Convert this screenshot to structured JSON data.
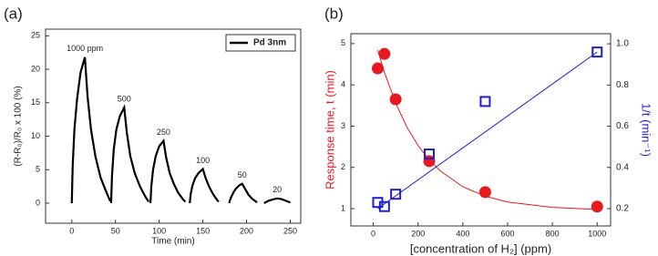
{
  "chart_data": [
    {
      "type": "line",
      "panel_label": "(a)",
      "xlabel": "Time (min)",
      "ylabel": "(R-R₀)/R₀ x 100 (%)",
      "x": [
        0,
        1,
        3,
        6,
        10,
        15,
        18,
        22,
        27,
        33,
        40,
        44,
        44.5,
        45,
        46,
        48,
        51,
        55,
        60,
        63,
        67,
        72,
        78,
        84,
        88,
        89,
        90,
        91,
        93,
        96,
        100,
        105,
        108,
        112,
        117,
        122,
        127,
        130,
        132,
        135,
        136,
        138,
        141,
        145,
        150,
        153,
        157,
        161,
        165,
        168,
        174,
        180,
        182,
        185,
        188,
        192,
        195,
        198,
        202,
        206,
        210,
        212,
        216,
        220,
        225,
        230,
        235,
        240,
        245,
        250
      ],
      "series": [
        {
          "name": "Pd 3nm",
          "color": "#000000",
          "values": [
            0,
            5.5,
            11,
            15.5,
            19.5,
            21.8,
            16,
            11,
            7,
            3.8,
            1.5,
            0.3,
            null,
            0,
            4,
            8,
            11,
            13,
            14.3,
            10.5,
            7,
            4.5,
            2.5,
            1,
            0.2,
            null,
            0,
            2.5,
            5,
            7,
            8.5,
            9.3,
            6.8,
            4.5,
            2.8,
            1.5,
            0.6,
            0.2,
            null,
            0,
            1.3,
            2.6,
            3.7,
            4.5,
            5.1,
            3.8,
            2.5,
            1.5,
            0.7,
            0.2,
            null,
            0,
            0.8,
            1.6,
            2.2,
            2.7,
            2.9,
            2.2,
            1.3,
            0.7,
            0.3,
            0.1,
            null,
            0,
            0.35,
            0.55,
            0.7,
            0.6,
            0.35,
            0.1
          ]
        }
      ],
      "annotations": [
        "1000 ppm",
        "500",
        "250",
        "100",
        "50",
        "20"
      ],
      "legend": "upper right",
      "xlim": [
        -30,
        262
      ],
      "xticks": [
        0,
        50,
        100,
        150,
        200,
        250
      ],
      "ylim": [
        -3,
        26
      ],
      "yticks": [
        0,
        5,
        10,
        15,
        20,
        25
      ]
    },
    {
      "type": "scatter",
      "panel_label": "(b)",
      "xlabel": "[concentration of H₂] (ppm)",
      "ylabel": "Response time, t (min)",
      "y2label": "1/t (min⁻¹)",
      "series": [
        {
          "marker": "circle",
          "color": "#e8191e",
          "x": [
            20,
            50,
            100,
            250,
            500,
            1000
          ],
          "values": [
            4.4,
            4.75,
            3.65,
            2.15,
            1.4,
            1.05
          ]
        },
        {
          "marker": "none",
          "color": "#e8191e",
          "x": [
            20,
            50,
            100,
            150,
            200,
            250,
            300,
            400,
            500,
            600,
            800,
            1000
          ],
          "values": [
            4.84,
            4.3,
            3.56,
            2.98,
            2.53,
            2.18,
            1.91,
            1.53,
            1.3,
            1.16,
            1.03,
            0.98
          ]
        },
        {
          "marker": "square",
          "color": "#1f1fd0",
          "axis": "y2",
          "x": [
            20,
            50,
            100,
            250,
            500,
            1000
          ],
          "values": [
            0.23,
            0.21,
            0.27,
            0.465,
            0.72,
            0.96
          ]
        },
        {
          "marker": "none",
          "color": "#1f1fd0",
          "axis": "y2",
          "x": [
            20,
            1000
          ],
          "values": [
            0.2,
            0.96
          ]
        }
      ],
      "xlim": [
        -100,
        1060
      ],
      "xticks": [
        0,
        200,
        400,
        600,
        800,
        1000
      ],
      "ylim": [
        0.58,
        5.24
      ],
      "yticks": [
        1,
        2,
        3,
        4,
        5
      ],
      "y2lim": [
        0.116,
        1.049
      ],
      "y2ticks": [
        0.2,
        0.4,
        0.6,
        0.8,
        {
          "value": 1.0,
          "label": "1.0"
        }
      ]
    }
  ]
}
